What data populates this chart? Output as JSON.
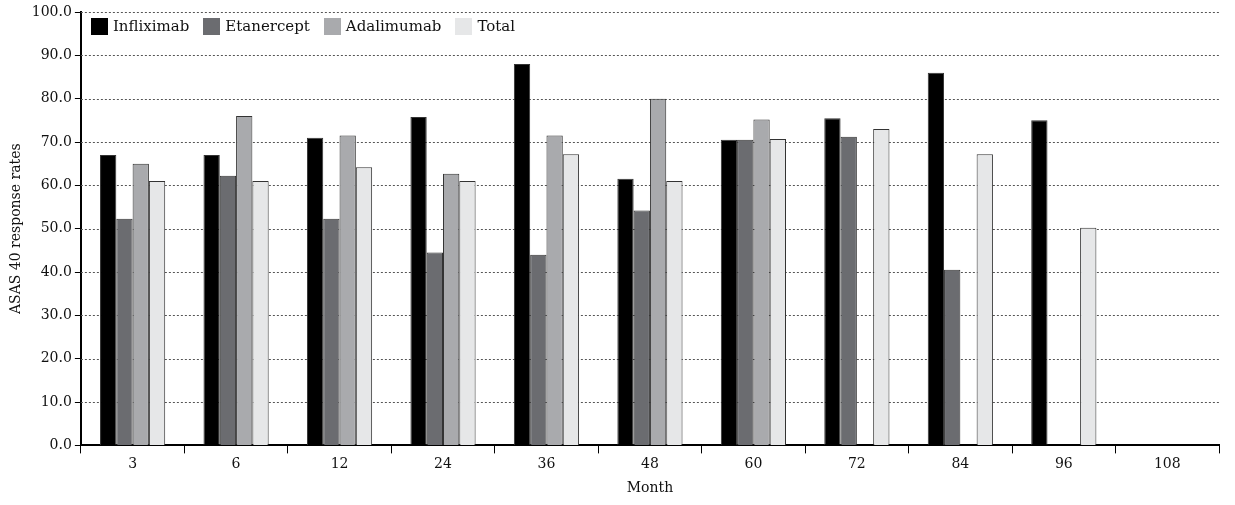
{
  "chart_data": {
    "type": "bar",
    "xlabel": "Month",
    "ylabel": "ASAS 40 response rates",
    "categories": [
      "3",
      "6",
      "12",
      "24",
      "36",
      "48",
      "60",
      "72",
      "84",
      "96",
      "108"
    ],
    "series": [
      {
        "name": "Infliximab",
        "color": "#000000",
        "values": [
          67,
          67,
          71,
          75.8,
          88,
          61.5,
          70.5,
          75.5,
          86,
          75,
          null
        ]
      },
      {
        "name": "Etanercept",
        "color": "#6b6c70",
        "values": [
          52.3,
          62.2,
          52.3,
          44.5,
          44,
          54.2,
          70.5,
          71.2,
          40.5,
          null,
          null
        ]
      },
      {
        "name": "Adalimumab",
        "color": "#a9aaad",
        "values": [
          65,
          76,
          71.5,
          62.7,
          71.5,
          80,
          75.2,
          null,
          null,
          null,
          null
        ]
      },
      {
        "name": "Total",
        "color": "#e6e7e8",
        "values": [
          61,
          61,
          64.2,
          61,
          67.2,
          61,
          70.7,
          73,
          67.2,
          50.2,
          null
        ]
      }
    ],
    "ylim": [
      0,
      100
    ],
    "yticks": [
      {
        "value": 0,
        "label": "0.0"
      },
      {
        "value": 10,
        "label": "10.0"
      },
      {
        "value": 20,
        "label": "20.0"
      },
      {
        "value": 30,
        "label": "30.0"
      },
      {
        "value": 40,
        "label": "40.0"
      },
      {
        "value": 50,
        "label": "50.0"
      },
      {
        "value": 60,
        "label": "60.0"
      },
      {
        "value": 70,
        "label": "70.0"
      },
      {
        "value": 80,
        "label": "80.0"
      },
      {
        "value": 90,
        "label": "90.0"
      },
      {
        "value": 100,
        "label": "100.0"
      }
    ],
    "grid": "y",
    "legend": "top left"
  }
}
